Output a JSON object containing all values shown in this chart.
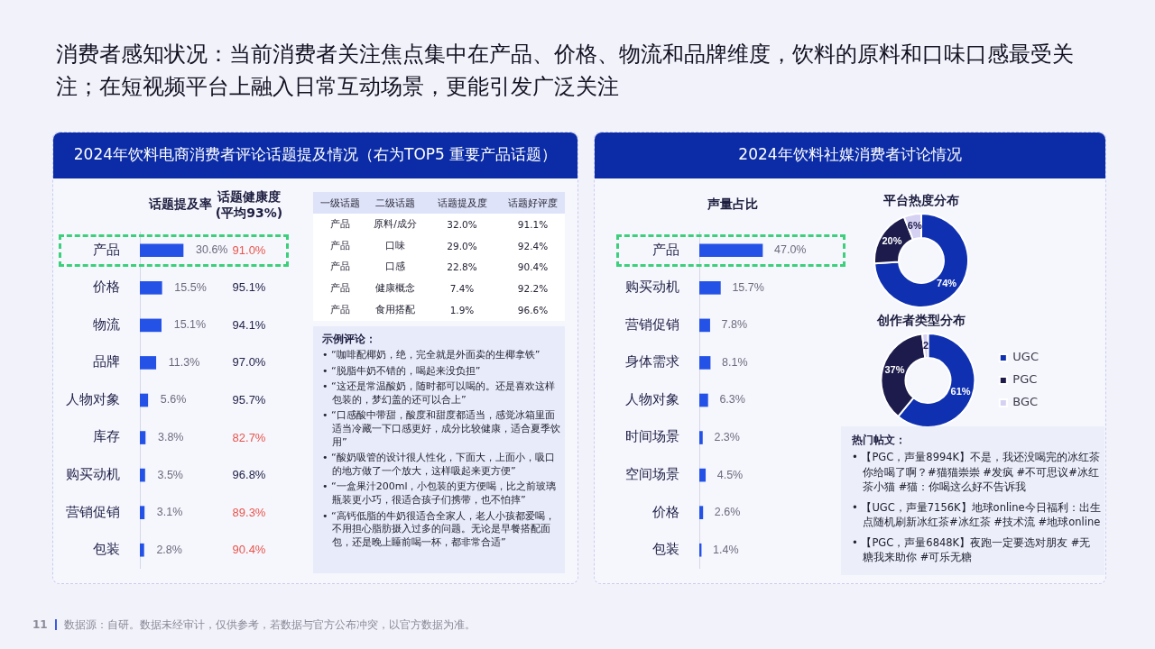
{
  "chart_data": [
    {
      "type": "other",
      "title": "消费者感知状况：当前消费者关注焦点集中在产品、价格、物流和品牌维度，饮料的原料和口味口感最受关注；在短视频平台上融入日常互动场景，更能引发广泛关注",
      "annotations": [
        "11",
        "数据源：自研。数据未经审计，仅供参考，若数据与官方公布冲突，以官方数据为准。"
      ]
    },
    {
      "type": "bar",
      "orientation": "horizontal",
      "title": "2024年饮料电商消费者评论话题提及情况（右为TOP5 重要产品话题）",
      "subtitle": "话题提及率",
      "categories": [
        "产品",
        "价格",
        "物流",
        "品牌",
        "人物对象",
        "库存",
        "购买动机",
        "营销促销",
        "包装"
      ],
      "values": [
        30.6,
        15.5,
        15.1,
        11.3,
        5.6,
        3.8,
        3.5,
        3.1,
        2.8
      ],
      "value_labels": [
        "30.6%",
        "15.5%",
        "15.1%",
        "11.3%",
        "5.6%",
        "3.8%",
        "3.5%",
        "3.1%",
        "2.8%"
      ],
      "color": "#2452e6"
    },
    {
      "type": "other",
      "title": "话题健康度",
      "subtitle": "(平均93%)",
      "values": [
        91.0,
        95.1,
        94.1,
        97.0,
        95.7,
        82.7,
        96.8,
        89.3,
        90.4
      ],
      "value_labels": [
        "91.0%",
        "95.1%",
        "94.1%",
        "97.0%",
        "95.7%",
        "82.7%",
        "96.8%",
        "89.3%",
        "90.4%"
      ],
      "colors": [
        "#e8554d",
        "#23234a",
        "#23234a",
        "#23234a",
        "#23234a",
        "#e8554d",
        "#23234a",
        "#e8554d",
        "#e8554d"
      ]
    },
    {
      "type": "other",
      "categories": [
        "一级话题",
        "二级话题",
        "话题提及度",
        "话题好评度"
      ],
      "cell_labels": [
        [
          "产品",
          "原料/成分",
          "32.0%",
          "91.1%"
        ],
        [
          "产品",
          "口味",
          "29.0%",
          "92.4%"
        ],
        [
          "产品",
          "口感",
          "22.8%",
          "90.4%"
        ],
        [
          "产品",
          "健康概念",
          "7.4%",
          "92.2%"
        ],
        [
          "产品",
          "食用搭配",
          "1.9%",
          "96.6%"
        ]
      ]
    },
    {
      "type": "other",
      "title": "示例评论：",
      "annotations": [
        "• “咖啡配椰奶，绝，完全就是外面卖的生椰拿铁”",
        "• “脱脂牛奶不错的，喝起来没负担”",
        "• “这还是常温酸奶，随时都可以喝的。还是喜欢这样包装的，梦幻盖的还可以合上”",
        "• “口感酸中带甜，酸度和甜度都适当，感觉冰箱里面适当冷藏一下口感更好，成分比较健康，适合夏季饮用”",
        "• “酸奶吸管的设计很人性化，下面大，上面小，吸口的地方做了一个放大，这样吸起来更方便”",
        "• “一盒果汁200ml，小包装的更方便喝，比之前玻璃瓶装更小巧，很适合孩子们携带，也不怕摔”",
        "• “高钙低脂的牛奶很适合全家人，老人小孩都爱喝，不用担心脂肪摄入过多的问题。无论是早餐搭配面包，还是晚上睡前喝一杯，都非常合适”"
      ]
    },
    {
      "type": "bar",
      "orientation": "horizontal",
      "title": "2024年饮料社媒消费者讨论情况",
      "subtitle": "声量占比",
      "categories": [
        "产品",
        "购买动机",
        "营销促销",
        "身体需求",
        "人物对象",
        "时间场景",
        "空间场景",
        "价格",
        "包装"
      ],
      "values": [
        47.0,
        15.7,
        7.8,
        8.1,
        6.3,
        2.3,
        4.5,
        2.6,
        1.4
      ],
      "value_labels": [
        "47.0%",
        "15.7%",
        "7.8%",
        "8.1%",
        "6.3%",
        "2.3%",
        "4.5%",
        "2.6%",
        "1.4%"
      ],
      "color": "#2452e6"
    },
    {
      "type": "donut",
      "title": "平台热度分布",
      "categories": [
        null,
        null,
        null
      ],
      "values": [
        74,
        20,
        6
      ],
      "colors": [
        "#0f30b0",
        "#1d1b4b",
        "#d5d1f2"
      ],
      "value_labels": [
        "74%",
        "20%",
        "6%"
      ]
    },
    {
      "type": "donut",
      "title": "创作者类型分布",
      "categories": [
        "UGC",
        "PGC",
        "BGC"
      ],
      "values": [
        61,
        37,
        2
      ],
      "colors": [
        "#0f30b0",
        "#1d1b4b",
        "#d5d1f2"
      ],
      "value_labels": [
        "61%",
        "37%",
        "2"
      ],
      "legend": "right"
    },
    {
      "type": "other",
      "title": "热门帖文：",
      "annotations": [
        "• 【PGC，声量8994K】不是，我还没喝完的冰红茶你给喝了啊？#猫猫崇崇 #发疯 #不可思议#冰红茶小猫 #猫：你喝这么好不告诉我",
        "• 【UGC，声量7156K】地球online今日福利：出生点随机刷新冰红茶#冰红茶 #技术流 #地球online",
        "• 【PGC，声量6848K】夜跑一定要选对朋友 #无糖我来助你 #可乐无糖"
      ]
    }
  ]
}
